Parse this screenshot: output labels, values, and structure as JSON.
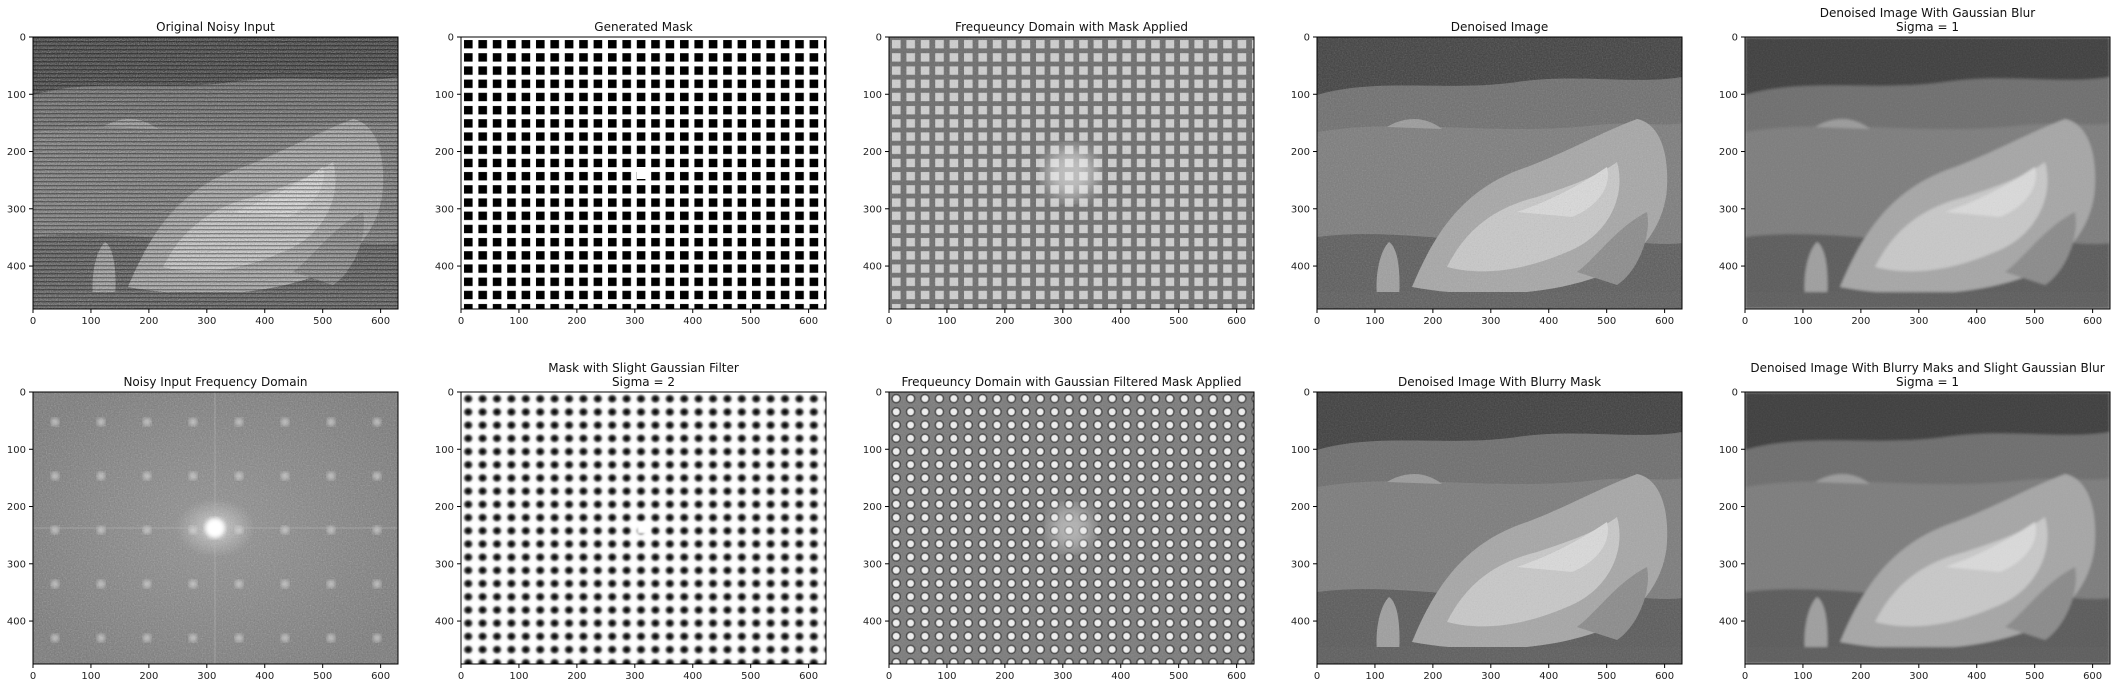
{
  "figure": {
    "background": "#ffffff"
  },
  "chart_data": [
    {
      "type": "image",
      "title": "Original Noisy Input",
      "content": "noisy-rock",
      "xlim": [
        0,
        630
      ],
      "ylim": [
        475,
        0
      ],
      "xticks": [
        0,
        100,
        200,
        300,
        400,
        500,
        600
      ],
      "yticks": [
        0,
        100,
        200,
        300,
        400
      ]
    },
    {
      "type": "image",
      "title": "Generated Mask",
      "content": "binary-mask",
      "xlim": [
        0,
        630
      ],
      "ylim": [
        475,
        0
      ],
      "xticks": [
        0,
        100,
        200,
        300,
        400,
        500,
        600
      ],
      "yticks": [
        0,
        100,
        200,
        300,
        400
      ]
    },
    {
      "type": "image",
      "title": "Frequeuncy Domain with Mask Applied",
      "content": "masked-spectrum",
      "xlim": [
        0,
        630
      ],
      "ylim": [
        475,
        0
      ],
      "xticks": [
        0,
        100,
        200,
        300,
        400,
        500,
        600
      ],
      "yticks": [
        0,
        100,
        200,
        300,
        400
      ]
    },
    {
      "type": "image",
      "title": "Denoised Image",
      "content": "denoised-rock",
      "xlim": [
        0,
        630
      ],
      "ylim": [
        475,
        0
      ],
      "xticks": [
        0,
        100,
        200,
        300,
        400,
        500,
        600
      ],
      "yticks": [
        0,
        100,
        200,
        300,
        400
      ]
    },
    {
      "type": "image",
      "title": "Denoised Image With Gaussian Blur",
      "subtitle": "Sigma = 1",
      "content": "blurred-rock",
      "xlim": [
        0,
        630
      ],
      "ylim": [
        475,
        0
      ],
      "xticks": [
        0,
        100,
        200,
        300,
        400,
        500,
        600
      ],
      "yticks": [
        0,
        100,
        200,
        300,
        400
      ]
    },
    {
      "type": "image",
      "title": "Noisy Input Frequency Domain",
      "content": "spectrum",
      "xlim": [
        0,
        630
      ],
      "ylim": [
        475,
        0
      ],
      "xticks": [
        0,
        100,
        200,
        300,
        400,
        500,
        600
      ],
      "yticks": [
        0,
        100,
        200,
        300,
        400
      ]
    },
    {
      "type": "image",
      "title": "Mask with Slight Gaussian Filter",
      "subtitle": "Sigma = 2",
      "content": "soft-mask",
      "xlim": [
        0,
        630
      ],
      "ylim": [
        475,
        0
      ],
      "xticks": [
        0,
        100,
        200,
        300,
        400,
        500,
        600
      ],
      "yticks": [
        0,
        100,
        200,
        300,
        400
      ]
    },
    {
      "type": "image",
      "title": "Frequeuncy Domain with Gaussian Filtered Mask Applied",
      "content": "soft-masked-spectrum",
      "xlim": [
        0,
        630
      ],
      "ylim": [
        475,
        0
      ],
      "xticks": [
        0,
        100,
        200,
        300,
        400,
        500,
        600
      ],
      "yticks": [
        0,
        100,
        200,
        300,
        400
      ]
    },
    {
      "type": "image",
      "title": "Denoised Image With Blurry Mask",
      "content": "denoised-rock-2",
      "xlim": [
        0,
        630
      ],
      "ylim": [
        475,
        0
      ],
      "xticks": [
        0,
        100,
        200,
        300,
        400,
        500,
        600
      ],
      "yticks": [
        0,
        100,
        200,
        300,
        400
      ]
    },
    {
      "type": "image",
      "title": "Denoised Image With Blurry Maks and Slight Gaussian Blur",
      "subtitle": "Sigma = 1",
      "content": "blurred-rock-2",
      "xlim": [
        0,
        630
      ],
      "ylim": [
        475,
        0
      ],
      "xticks": [
        0,
        100,
        200,
        300,
        400,
        500,
        600
      ],
      "yticks": [
        0,
        100,
        200,
        300,
        400
      ]
    }
  ]
}
